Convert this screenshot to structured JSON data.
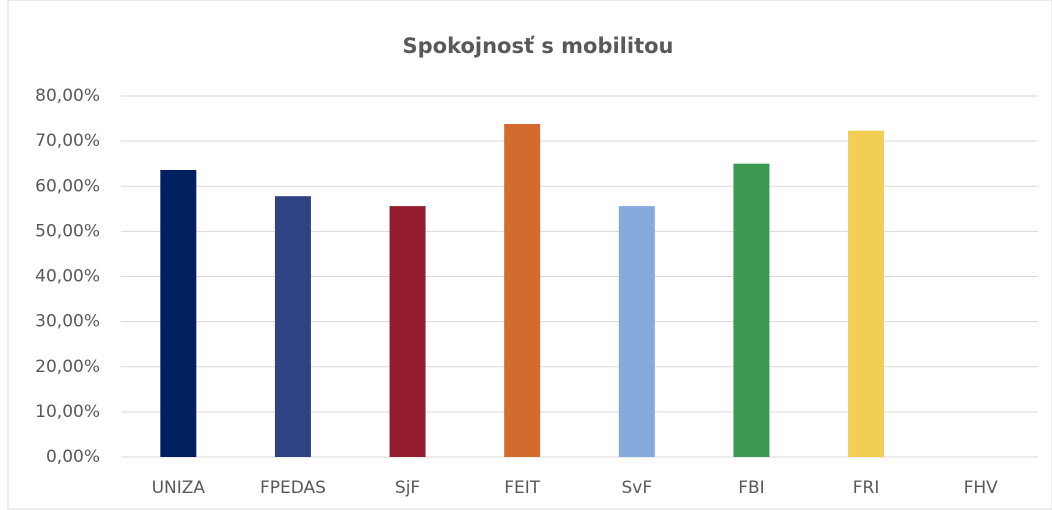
{
  "chart_data": {
    "type": "bar",
    "title": "Spokojnosť s mobilitou",
    "categories": [
      "UNIZA",
      "FPEDAS",
      "SjF",
      "FEIT",
      "SvF",
      "FBI",
      "FRI",
      "FHV"
    ],
    "values": [
      63.6,
      57.8,
      55.6,
      73.8,
      55.6,
      65.0,
      72.3,
      0
    ],
    "colors": [
      "#002060",
      "#2e4482",
      "#941c2f",
      "#d26b2e",
      "#87aadc",
      "#3c9a50",
      "#f2cf52",
      "#f2cf52"
    ],
    "ylim": [
      0,
      80
    ],
    "yticks": [
      {
        "value": 0,
        "label": "0,00%"
      },
      {
        "value": 10,
        "label": "10,00%"
      },
      {
        "value": 20,
        "label": "20,00%"
      },
      {
        "value": 30,
        "label": "30,00%"
      },
      {
        "value": 40,
        "label": "40,00%"
      },
      {
        "value": 50,
        "label": "50,00%"
      },
      {
        "value": 60,
        "label": "60,00%"
      },
      {
        "value": 70,
        "label": "70,00%"
      },
      {
        "value": 80,
        "label": "80,00%"
      }
    ],
    "grid": true
  }
}
